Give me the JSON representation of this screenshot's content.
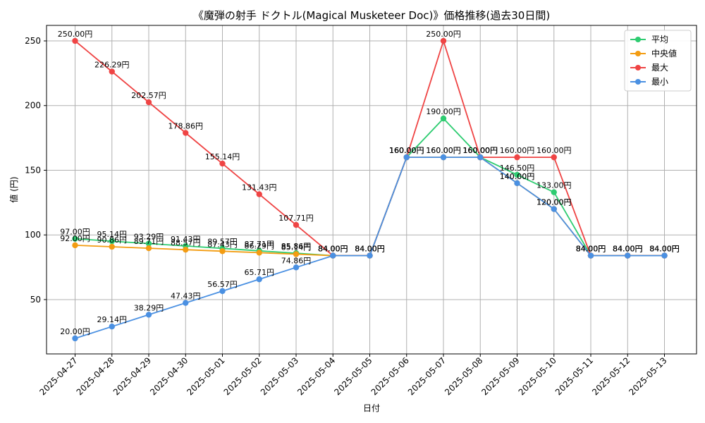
{
  "chart_data": {
    "type": "line",
    "title": "《魔弾の射手 ドクトル(Magical Musketeer Doc)》価格推移(過去30日間)",
    "xlabel": "日付",
    "ylabel": "値 (円)",
    "ylim": [
      8,
      262
    ],
    "yticks": [
      50,
      100,
      150,
      200,
      250
    ],
    "grid": true,
    "legend_position": "top-right",
    "label_suffix": "円",
    "categories": [
      "2025-04-27",
      "2025-04-28",
      "2025-04-29",
      "2025-04-30",
      "2025-05-01",
      "2025-05-02",
      "2025-05-03",
      "2025-05-04",
      "2025-05-05",
      "2025-05-06",
      "2025-05-07",
      "2025-05-08",
      "2025-05-09",
      "2025-05-10",
      "2025-05-11",
      "2025-05-12",
      "2025-05-13"
    ],
    "series": [
      {
        "name": "平均",
        "color": "#2ecc71",
        "values": [
          97.0,
          95.14,
          93.29,
          91.43,
          89.57,
          87.71,
          85.86,
          84.0,
          84.0,
          160.0,
          190.0,
          160.0,
          146.5,
          133.0,
          84.0,
          84.0,
          84.0
        ]
      },
      {
        "name": "中央値",
        "color": "#f39c12",
        "values": [
          92.0,
          90.86,
          89.71,
          88.57,
          87.43,
          86.29,
          85.14,
          84.0,
          84.0,
          160.0,
          160.0,
          160.0,
          140.0,
          120.0,
          84.0,
          84.0,
          84.0
        ]
      },
      {
        "name": "最大",
        "color": "#ef4444",
        "values": [
          250.0,
          226.29,
          202.57,
          178.86,
          155.14,
          131.43,
          107.71,
          84.0,
          84.0,
          160.0,
          250.0,
          160.0,
          160.0,
          160.0,
          84.0,
          84.0,
          84.0
        ]
      },
      {
        "name": "最小",
        "color": "#4a90e2",
        "values": [
          20.0,
          29.14,
          38.29,
          47.43,
          56.57,
          65.71,
          74.86,
          84.0,
          84.0,
          160.0,
          160.0,
          160.0,
          140.0,
          120.0,
          84.0,
          84.0,
          84.0
        ]
      }
    ]
  }
}
